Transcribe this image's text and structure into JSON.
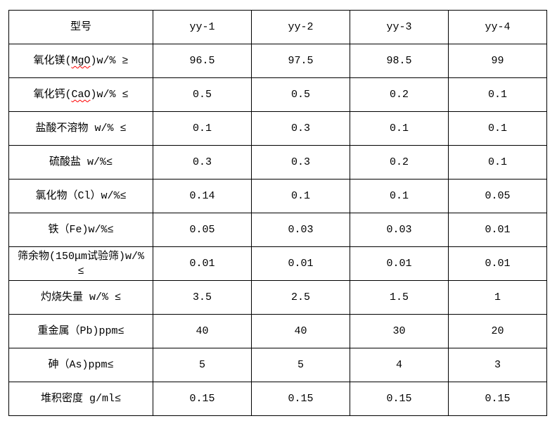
{
  "colors": {
    "background": "#ffffff",
    "border": "#000000",
    "text": "#000000",
    "spell_underline": "#ff0000"
  },
  "table": {
    "header": [
      "型号",
      "yy-1",
      "yy-2",
      "yy-3",
      "yy-4"
    ],
    "rows": [
      {
        "label_parts": [
          {
            "text": "氧化镁("
          },
          {
            "text": "MgO",
            "misspelled": true
          },
          {
            "text": ")w/% ≥"
          }
        ],
        "values": [
          "96.5",
          "97.5",
          "98.5",
          "99"
        ]
      },
      {
        "label_parts": [
          {
            "text": "氧化钙("
          },
          {
            "text": "CaO",
            "misspelled": true
          },
          {
            "text": ")w/% ≤"
          }
        ],
        "values": [
          "0.5",
          "0.5",
          "0.2",
          "0.1"
        ]
      },
      {
        "label_parts": [
          {
            "text": "盐酸不溶物 w/% ≤"
          }
        ],
        "values": [
          "0.1",
          "0.3",
          "0.1",
          "0.1"
        ]
      },
      {
        "label_parts": [
          {
            "text": "硫酸盐 w/%≤"
          }
        ],
        "values": [
          "0.3",
          "0.3",
          "0.2",
          "0.1"
        ]
      },
      {
        "label_parts": [
          {
            "text": "氯化物（Cl）w/%≤"
          }
        ],
        "values": [
          "0.14",
          "0.1",
          "0.1",
          "0.05"
        ]
      },
      {
        "label_parts": [
          {
            "text": "铁（Fe)w/%≤"
          }
        ],
        "values": [
          "0.05",
          "0.03",
          "0.03",
          "0.01"
        ]
      },
      {
        "label_parts": [
          {
            "text": "筛余物(150μm试验筛)w/% ≤"
          }
        ],
        "values": [
          "0.01",
          "0.01",
          "0.01",
          "0.01"
        ]
      },
      {
        "label_parts": [
          {
            "text": "灼烧失量 w/% ≤"
          }
        ],
        "values": [
          "3.5",
          "2.5",
          "1.5",
          "1"
        ]
      },
      {
        "label_parts": [
          {
            "text": "重金属（Pb)ppm≤"
          }
        ],
        "values": [
          "40",
          "40",
          "30",
          "20"
        ]
      },
      {
        "label_parts": [
          {
            "text": "砷（As)ppm≤"
          }
        ],
        "values": [
          "5",
          "5",
          "4",
          "3"
        ]
      },
      {
        "label_parts": [
          {
            "text": "堆积密度 g/ml≤"
          }
        ],
        "values": [
          "0.15",
          "0.15",
          "0.15",
          "0.15"
        ]
      }
    ]
  }
}
